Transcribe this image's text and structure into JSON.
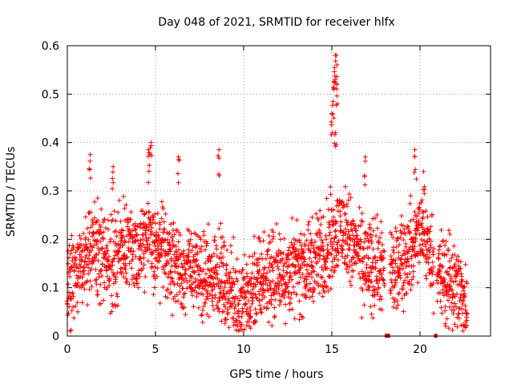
{
  "chart_data": {
    "type": "scatter",
    "title": "Day 048 of 2021, SRMTID for receiver hlfx",
    "xlabel": "GPS time / hours",
    "ylabel": "SRMTID / TECUs",
    "xlim": [
      0,
      24
    ],
    "ylim": [
      0,
      0.6
    ],
    "x_ticks": [
      "0",
      "5",
      "10",
      "15",
      "20"
    ],
    "y_ticks": [
      "0",
      "0.1",
      "0.2",
      "0.3",
      "0.4",
      "0.5",
      "0.6"
    ],
    "grid": true,
    "marker": "+",
    "color": "#ff0000",
    "series_sampling_minutes": 2,
    "baseline_profile": [
      [
        0.0,
        0.1
      ],
      [
        0.5,
        0.12
      ],
      [
        1.0,
        0.16
      ],
      [
        1.5,
        0.19
      ],
      [
        2.0,
        0.17
      ],
      [
        2.5,
        0.15
      ],
      [
        3.0,
        0.17
      ],
      [
        3.5,
        0.2
      ],
      [
        4.0,
        0.18
      ],
      [
        4.5,
        0.21
      ],
      [
        5.0,
        0.18
      ],
      [
        5.5,
        0.17
      ],
      [
        6.0,
        0.16
      ],
      [
        6.5,
        0.13
      ],
      [
        7.0,
        0.14
      ],
      [
        7.5,
        0.13
      ],
      [
        8.0,
        0.12
      ],
      [
        8.5,
        0.14
      ],
      [
        9.0,
        0.1
      ],
      [
        9.5,
        0.08
      ],
      [
        10.0,
        0.07
      ],
      [
        10.5,
        0.09
      ],
      [
        11.0,
        0.11
      ],
      [
        11.5,
        0.13
      ],
      [
        12.0,
        0.13
      ],
      [
        12.5,
        0.13
      ],
      [
        13.0,
        0.14
      ],
      [
        13.5,
        0.14
      ],
      [
        14.0,
        0.15
      ],
      [
        14.5,
        0.17
      ],
      [
        15.0,
        0.2
      ],
      [
        15.5,
        0.22
      ],
      [
        16.0,
        0.2
      ],
      [
        16.5,
        0.17
      ],
      [
        17.0,
        0.15
      ],
      [
        17.5,
        0.14
      ],
      [
        18.0,
        0.13
      ],
      [
        18.5,
        0.14
      ],
      [
        19.0,
        0.16
      ],
      [
        19.5,
        0.18
      ],
      [
        20.0,
        0.22
      ],
      [
        20.5,
        0.18
      ],
      [
        21.0,
        0.13
      ],
      [
        21.5,
        0.11
      ],
      [
        22.0,
        0.1
      ],
      [
        22.5,
        0.08
      ],
      [
        22.7,
        0.06
      ]
    ],
    "peaks": [
      {
        "x": 1.3,
        "y": 0.375
      },
      {
        "x": 2.6,
        "y": 0.35
      },
      {
        "x": 4.6,
        "y": 0.385
      },
      {
        "x": 4.75,
        "y": 0.4
      },
      {
        "x": 6.3,
        "y": 0.37
      },
      {
        "x": 8.6,
        "y": 0.385
      },
      {
        "x": 15.0,
        "y": 0.46
      },
      {
        "x": 15.1,
        "y": 0.51
      },
      {
        "x": 15.15,
        "y": 0.555
      },
      {
        "x": 15.2,
        "y": 0.58
      },
      {
        "x": 15.25,
        "y": 0.58
      },
      {
        "x": 15.3,
        "y": 0.52
      },
      {
        "x": 15.2,
        "y": 0.42
      },
      {
        "x": 16.9,
        "y": 0.37
      },
      {
        "x": 19.7,
        "y": 0.385
      },
      {
        "x": 20.2,
        "y": 0.34
      }
    ],
    "data_gaps": [
      {
        "x_start": 18.0,
        "x_end": 18.3
      },
      {
        "x_start": 20.8,
        "x_end": 20.95
      }
    ]
  }
}
